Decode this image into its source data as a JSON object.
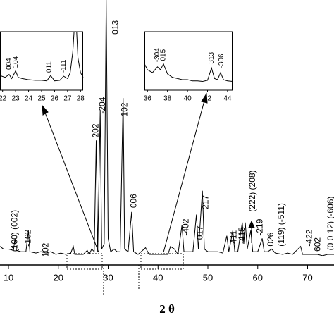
{
  "chart_data": [
    {
      "type": "line",
      "xlabel": "2 θ",
      "color": "#000000",
      "x": [
        8.3,
        9,
        10,
        11,
        11.3,
        11.6,
        12.5,
        13.5,
        14.0,
        14.3,
        15.5,
        16.5,
        17.5,
        18.5,
        19.5,
        20.5,
        21.5,
        22.5,
        23.0,
        23.3,
        24,
        25,
        25.8,
        26.2,
        26.7,
        27.2,
        27.6,
        27.9,
        28.4,
        28.7,
        29.2,
        29.6,
        30.0,
        30.5,
        31.2,
        31.8,
        32.4,
        33.0,
        33.3,
        34.0,
        34.7,
        35.1,
        36,
        37.2,
        37.5,
        38.2,
        39,
        40,
        41,
        42,
        42.5,
        43.3,
        44,
        44.8,
        45.2,
        46,
        47,
        47.7,
        48.1,
        48.9,
        49.3,
        50,
        51,
        52,
        53,
        53.8,
        54.2,
        55.0,
        55.4,
        56,
        56.9,
        57.2,
        57.5,
        57.9,
        58.6,
        59,
        60,
        60.9,
        61.3,
        62,
        62.8,
        63.5,
        65,
        66,
        67,
        68.6,
        69,
        70,
        71,
        72,
        73,
        74,
        75.3
      ],
      "values": [
        7,
        6,
        6,
        5.5,
        10,
        5.5,
        5,
        5,
        13,
        5,
        4.5,
        5,
        4.5,
        5,
        4,
        4.5,
        4,
        4.5,
        7,
        4,
        4,
        4,
        5.5,
        4,
        6,
        5,
        47,
        5,
        58,
        6,
        8,
        100,
        10,
        5,
        6,
        5,
        5,
        63,
        6,
        5,
        20,
        5,
        4,
        6,
        6.5,
        4,
        4,
        4,
        4,
        4,
        7,
        6,
        4,
        15,
        5,
        5,
        5,
        19,
        6,
        28,
        6,
        5,
        5,
        5,
        4.5,
        11,
        5,
        13,
        5,
        5,
        16,
        8,
        16,
        6,
        13,
        5,
        5,
        10,
        5,
        5,
        6,
        4.5,
        4,
        4.5,
        4,
        7,
        4,
        4,
        4,
        4,
        3.5,
        4,
        4
      ],
      "xlim": [
        8.3,
        75.3
      ],
      "ylim": [
        0,
        100
      ],
      "xticks": [
        10,
        20,
        30,
        40,
        50,
        60,
        70
      ],
      "annotations": [
        {
          "text": "(100) (002)",
          "x": 11.3,
          "y": 5
        },
        {
          "text": "-102",
          "x": 14.0,
          "y": 7
        },
        {
          "text": "102",
          "x": 17.5,
          "y": 3
        },
        {
          "text": "202",
          "x": 27.6,
          "y": 48
        },
        {
          "text": "-204",
          "x": 28.9,
          "y": 57
        },
        {
          "text": "013",
          "x": 31.5,
          "y": 87
        },
        {
          "text": "102",
          "x": 33.4,
          "y": 56
        },
        {
          "text": "006",
          "x": 35.2,
          "y": 21.5
        },
        {
          "text": "-402",
          "x": 45.7,
          "y": 11
        },
        {
          "text": "017",
          "x": 48.5,
          "y": 9.5
        },
        {
          "text": "-217",
          "x": 49.6,
          "y": 20
        },
        {
          "text": "411",
          "x": 55.3,
          "y": 8
        },
        {
          "text": "-415",
          "x": 56.9,
          "y": 8
        },
        {
          "text": "(222) (208)",
          "x": 59.0,
          "y": 20
        },
        {
          "text": "-219",
          "x": 60.5,
          "y": 11
        },
        {
          "text": "026",
          "x": 62.7,
          "y": 7
        },
        {
          "text": "(119) (-511)",
          "x": 64.8,
          "y": 7
        },
        {
          "text": "-422",
          "x": 70.4,
          "y": 7
        },
        {
          "text": "-602",
          "x": 72.1,
          "y": 4
        },
        {
          "text": "(0 0 12) (-606)",
          "x": 74.7,
          "y": 5.5
        }
      ]
    },
    {
      "type": "line",
      "color": "#000000",
      "x": [
        21.8,
        22.2,
        22.5,
        22.7,
        23.0,
        23.2,
        23.5,
        24,
        24.5,
        25,
        25.4,
        25.7,
        26,
        26.4,
        26.7,
        27,
        27.2,
        27.4,
        27.5,
        27.7,
        27.8,
        28.0,
        28.2
      ],
      "values": [
        25,
        22,
        27,
        20,
        33,
        22,
        20,
        18,
        17,
        17,
        16,
        25,
        16,
        17,
        24,
        20,
        30,
        65,
        100,
        100,
        55,
        30,
        22
      ],
      "xlim": [
        21.8,
        28.2
      ],
      "ylim": [
        0,
        100
      ],
      "xticks": [
        22,
        23,
        24,
        25,
        26,
        27,
        28
      ],
      "annotations": [
        {
          "text": "004",
          "x": 22.5,
          "y": 35
        },
        {
          "text": "104",
          "x": 23.0,
          "y": 38
        },
        {
          "text": "011",
          "x": 25.6,
          "y": 30
        },
        {
          "text": "-111",
          "x": 26.7,
          "y": 30
        }
      ]
    },
    {
      "type": "line",
      "color": "#000000",
      "x": [
        35.7,
        36,
        36.5,
        37.0,
        37.3,
        37.6,
        38,
        38.5,
        39,
        39.5,
        40,
        40.5,
        41,
        41.5,
        42,
        42.4,
        42.7,
        43.0,
        43.3,
        43.6,
        44,
        44.5
      ],
      "values": [
        45,
        35,
        30,
        40,
        35,
        45,
        28,
        22,
        20,
        18,
        18,
        16,
        16,
        15,
        17,
        38,
        20,
        18,
        30,
        18,
        16,
        15
      ],
      "xlim": [
        35.7,
        44.5
      ],
      "ylim": [
        0,
        100
      ],
      "xticks": [
        36,
        38,
        40,
        42,
        44
      ],
      "annotations": [
        {
          "text": "-304",
          "x": 37.0,
          "y": 48
        },
        {
          "text": "015",
          "x": 37.6,
          "y": 50
        },
        {
          "text": "313",
          "x": 42.4,
          "y": 45
        },
        {
          "text": "-306",
          "x": 43.4,
          "y": 38
        }
      ]
    }
  ]
}
